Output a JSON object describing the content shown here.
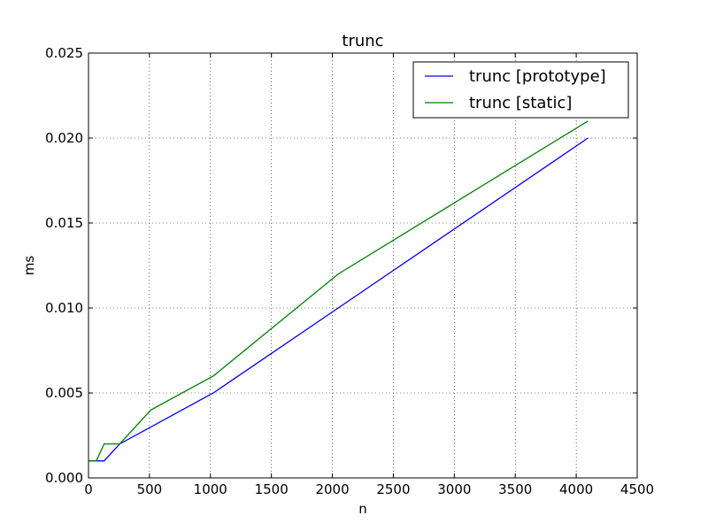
{
  "chart_data": {
    "type": "line",
    "title": "trunc",
    "xlabel": "n",
    "ylabel": "ms",
    "xlim": [
      0,
      4500
    ],
    "ylim": [
      0,
      0.025
    ],
    "x_ticks": [
      "0",
      "500",
      "1000",
      "1500",
      "2000",
      "2500",
      "3000",
      "3500",
      "4000",
      "4500"
    ],
    "y_ticks": [
      "0.000",
      "0.005",
      "0.010",
      "0.015",
      "0.020",
      "0.025"
    ],
    "grid": true,
    "legend_position": "top-right",
    "series": [
      {
        "name": "trunc [prototype]",
        "color": "#0000ff",
        "x": [
          1,
          2,
          4,
          8,
          16,
          32,
          64,
          128,
          256,
          512,
          1024,
          2048,
          4096
        ],
        "y": [
          0.001,
          0.001,
          0.001,
          0.001,
          0.001,
          0.001,
          0.001,
          0.001,
          0.002,
          0.003,
          0.005,
          0.01,
          0.02
        ]
      },
      {
        "name": "trunc [static]",
        "color": "#008000",
        "x": [
          1,
          2,
          4,
          8,
          16,
          32,
          64,
          128,
          256,
          512,
          1024,
          2048,
          4096
        ],
        "y": [
          0.001,
          0.001,
          0.001,
          0.001,
          0.001,
          0.001,
          0.001,
          0.002,
          0.002,
          0.004,
          0.006,
          0.012,
          0.021
        ]
      }
    ]
  }
}
